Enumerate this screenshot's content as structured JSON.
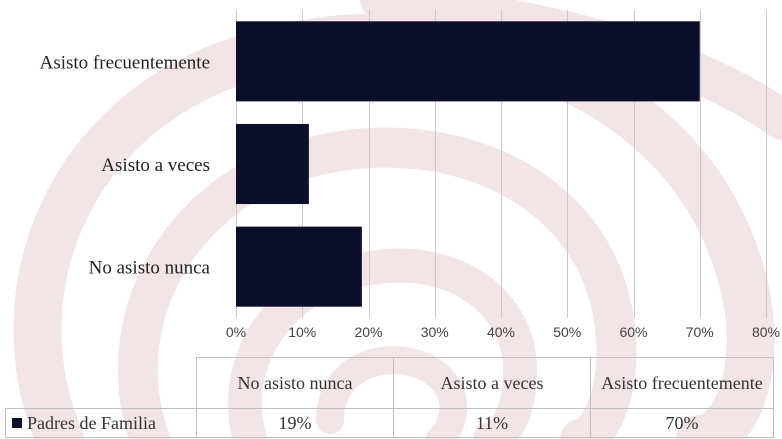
{
  "chart_data": {
    "type": "bar",
    "orientation": "horizontal",
    "categories": [
      "No asisto nunca",
      "Asisto a veces",
      "Asisto frecuentemente"
    ],
    "series": [
      {
        "name": "Padres de Familia",
        "values": [
          19,
          11,
          70
        ],
        "color": "#0b0f2a"
      }
    ],
    "xlim": [
      0,
      80
    ],
    "xticks": [
      "0%",
      "10%",
      "20%",
      "30%",
      "40%",
      "50%",
      "60%",
      "70%",
      "80%"
    ],
    "grid": true,
    "title": "",
    "xlabel": "",
    "ylabel": ""
  },
  "data_table": {
    "headers": [
      "No asisto nunca",
      "Asisto a veces",
      "Asisto frecuentemente"
    ],
    "row_label": "Padres de Familia",
    "values": [
      "19%",
      "11%",
      "70%"
    ]
  },
  "colors": {
    "bar": "#0b0f2a",
    "watermark": "#f3e4e4"
  }
}
